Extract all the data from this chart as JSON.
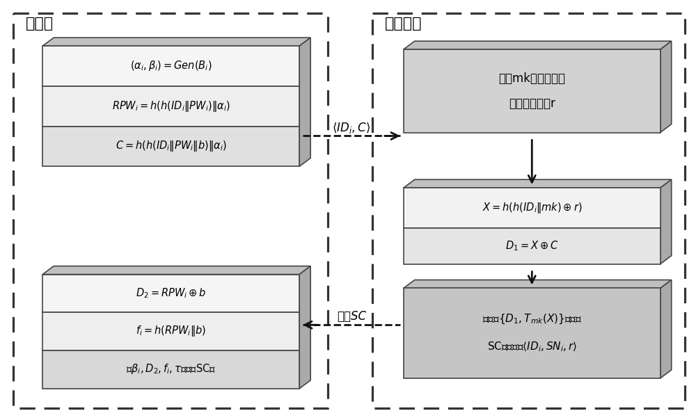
{
  "background_color": "#ffffff",
  "fig_width": 10.0,
  "fig_height": 6.04,
  "left_box_label": "用户端",
  "right_box_label": "服务器端",
  "box1_lines": [
    "$(\\alpha_i, \\beta_i) = Gen(B_i)$",
    "$RPW_i = h\\left(h\\left(ID_i \\| PW_i\\right) \\| \\alpha_i\\right)$",
    "$C = h\\left(h\\left(ID_i \\| PW_i \\| b\\right) \\| \\alpha_i\\right)$"
  ],
  "box2_lines": [
    "选择mk作为主密钥",
    "并选择随机数r"
  ],
  "box3_lines": [
    "$X = h\\left(h\\left(ID_i \\| mk\\right) \\oplus r\\right)$",
    "$D_1 = X \\oplus C$"
  ],
  "box4_lines": [
    "$D_2 = RPW_i \\oplus b$",
    "$f_i = h\\left(RPW_i \\| b\\right)$",
    "将$\\beta_i, D_2, f_i, \\tau$存储于SC中"
  ],
  "box5_lines": [
    "将参数$\\{D_1, T_{mk}(X)\\}$嵌入到",
    "SC中并存储$\\langle ID_i, SN_i, r\\rangle$"
  ],
  "arrow_right_label": "$\\langle ID_i, C\\rangle$",
  "arrow_left_label": "颁发SC"
}
